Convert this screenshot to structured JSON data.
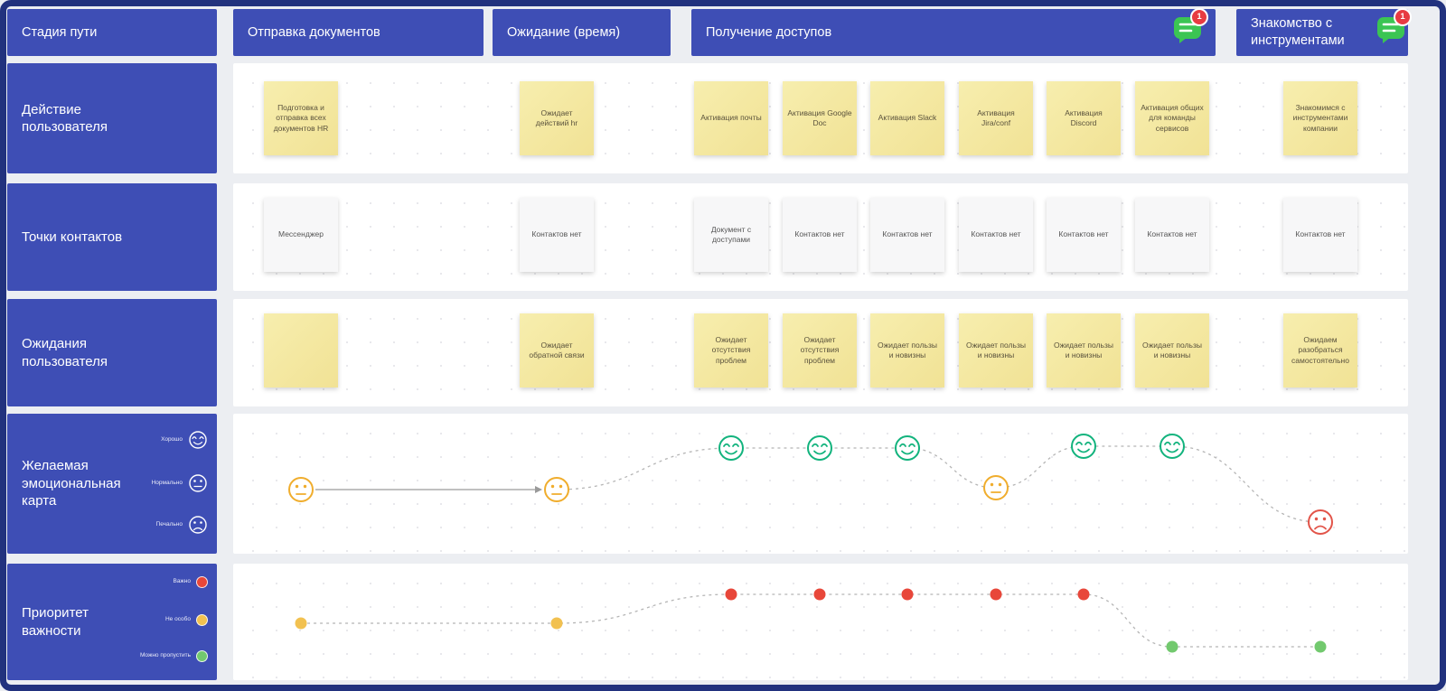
{
  "colors": {
    "frame": "#22327e",
    "header_blue": "#3e4eb5",
    "sticky_yellow": "#f5eaa3",
    "sticky_gray": "#f7f7f8",
    "happy": "#12b37d",
    "neutral": "#f0ad2d",
    "sad": "#e25449",
    "priority_high": "#e8473a",
    "priority_mid": "#f2c150",
    "priority_low": "#72c96e",
    "comment_green": "#3bc553",
    "badge_red": "#e73b42"
  },
  "header": {
    "corner": "Стадия пути",
    "columns": [
      {
        "label": "Отправка документов"
      },
      {
        "label": "Ожидание (время)"
      },
      {
        "label": "Получение доступов",
        "comment_count": "1"
      },
      {
        "label": "Знакомство с инструментами",
        "comment_count": "1"
      }
    ]
  },
  "rows": {
    "actions": {
      "label": "Действие пользователя",
      "notes": [
        "Подготовка и отправка всех документов HR",
        "Ожидает действий hr",
        "Активация почты",
        "Активация Google Doc",
        "Активация Slack",
        "Активация Jira/conf",
        "Активация Discord",
        "Активация общих для команды сервисов",
        "Знакомимся с инструментами компании"
      ]
    },
    "touchpoints": {
      "label": "Точки контактов",
      "notes": [
        "Мессенджер",
        "Контактов нет",
        "Документ с доступами",
        "Контактов нет",
        "Контактов нет",
        "Контактов нет",
        "Контактов нет",
        "Контактов нет",
        "Контактов нет"
      ]
    },
    "expectations": {
      "label": "Ожидания пользователя",
      "notes": [
        "",
        "Ожидает обратной связи",
        "Ожидает отсутствия проблем",
        "Ожидает отсутствия проблем",
        "Ожидает пользы и новизны",
        "Ожидает пользы и новизны",
        "Ожидает пользы и новизны",
        "Ожидает пользы и новизны",
        "Ожидаем разобраться самостоятельно"
      ]
    },
    "emotions": {
      "label": "Желаемая эмоциональная карта",
      "legend": [
        {
          "label": "Хорошо",
          "icon": "happy"
        },
        {
          "label": "Нормально",
          "icon": "neutral"
        },
        {
          "label": "Печально",
          "icon": "sad"
        }
      ],
      "points": [
        "neutral",
        "neutral",
        "happy",
        "happy",
        "happy",
        "neutral",
        "happy",
        "happy",
        "sad"
      ]
    },
    "priority": {
      "label": "Приоритет важности",
      "legend": [
        {
          "label": "Важно",
          "level": "high"
        },
        {
          "label": "Не особо",
          "level": "mid"
        },
        {
          "label": "Можно пропустить",
          "level": "low"
        }
      ],
      "points": [
        "mid",
        "mid",
        "high",
        "high",
        "high",
        "high",
        "high",
        "low",
        "low"
      ]
    }
  }
}
